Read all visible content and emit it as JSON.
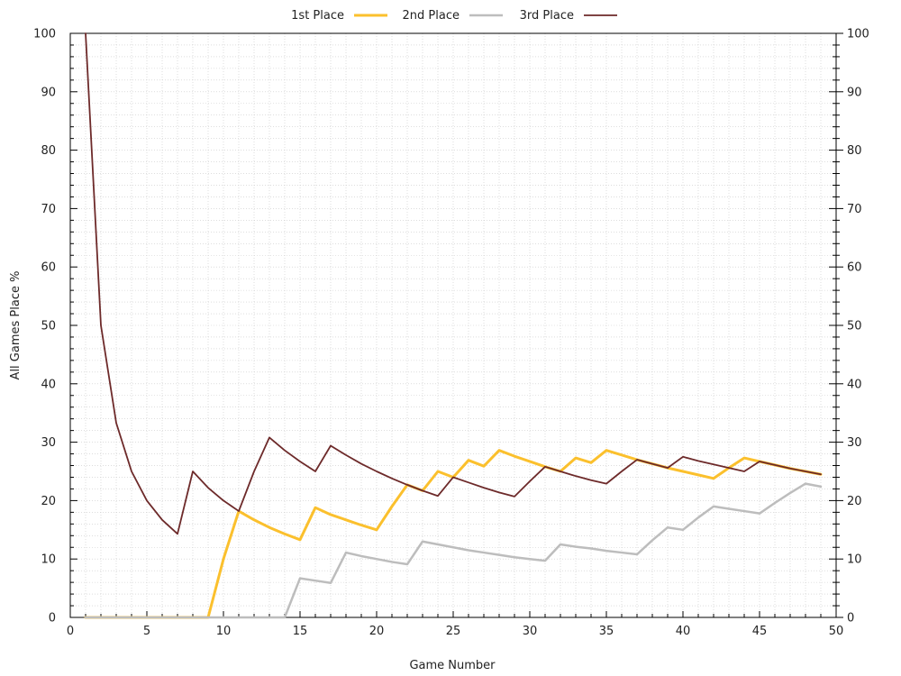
{
  "chart_data": {
    "type": "line",
    "xlabel": "Game Number",
    "ylabel": "All Games Place %",
    "xlim": [
      0,
      50
    ],
    "ylim": [
      0,
      100
    ],
    "x_ticks": [
      0,
      5,
      10,
      15,
      20,
      25,
      30,
      35,
      40,
      45,
      50
    ],
    "y_ticks": [
      0,
      10,
      20,
      30,
      40,
      50,
      60,
      70,
      80,
      90,
      100
    ],
    "grid": true,
    "legend_position": "top-center",
    "x": [
      1,
      2,
      3,
      4,
      5,
      6,
      7,
      8,
      9,
      10,
      11,
      12,
      13,
      14,
      15,
      16,
      17,
      18,
      19,
      20,
      21,
      22,
      23,
      24,
      25,
      26,
      27,
      28,
      29,
      30,
      31,
      32,
      33,
      34,
      35,
      36,
      37,
      38,
      39,
      40,
      41,
      42,
      43,
      44,
      45,
      46,
      47,
      48,
      49
    ],
    "series": [
      {
        "name": "1st Place",
        "color": "#FBC02D",
        "width": 3,
        "values": [
          0,
          0,
          0,
          0,
          0,
          0,
          0,
          0,
          0,
          10,
          18.2,
          16.7,
          15.4,
          14.3,
          13.3,
          18.8,
          17.6,
          16.7,
          15.8,
          15.0,
          19.0,
          22.7,
          21.7,
          25.0,
          24.0,
          26.9,
          25.9,
          28.6,
          27.6,
          26.7,
          25.8,
          25.0,
          27.3,
          26.5,
          28.6,
          27.8,
          27.0,
          26.3,
          25.6,
          25.0,
          24.4,
          23.8,
          25.6,
          27.3,
          26.7,
          26.1,
          25.5,
          25.0,
          24.5
        ]
      },
      {
        "name": "2nd Place",
        "color": "#BDBDBD",
        "width": 2.5,
        "values": [
          0,
          0,
          0,
          0,
          0,
          0,
          0,
          0,
          0,
          0,
          0,
          0,
          0,
          0,
          6.7,
          6.3,
          5.9,
          11.1,
          10.5,
          10.0,
          9.5,
          9.1,
          13.0,
          12.5,
          12.0,
          11.5,
          11.1,
          10.7,
          10.3,
          10.0,
          9.7,
          12.5,
          12.1,
          11.8,
          11.4,
          11.1,
          10.8,
          13.2,
          15.4,
          15.0,
          17.1,
          19.0,
          18.6,
          18.2,
          17.8,
          19.6,
          21.3,
          22.9,
          22.4
        ]
      },
      {
        "name": "3rd Place",
        "color": "#6D2A2A",
        "width": 1.8,
        "values": [
          100,
          50,
          33.3,
          25.0,
          20.0,
          16.7,
          14.3,
          25.0,
          22.2,
          20.0,
          18.2,
          25.0,
          30.8,
          28.6,
          26.7,
          25.0,
          29.4,
          27.8,
          26.3,
          25.0,
          23.8,
          22.7,
          21.7,
          20.8,
          24.0,
          23.1,
          22.2,
          21.4,
          20.7,
          23.3,
          25.8,
          25.0,
          24.2,
          23.5,
          22.9,
          25.0,
          27.0,
          26.3,
          25.6,
          27.5,
          26.8,
          26.2,
          25.6,
          25.0,
          26.7,
          26.1,
          25.5,
          25.0,
          24.5
        ]
      }
    ]
  }
}
